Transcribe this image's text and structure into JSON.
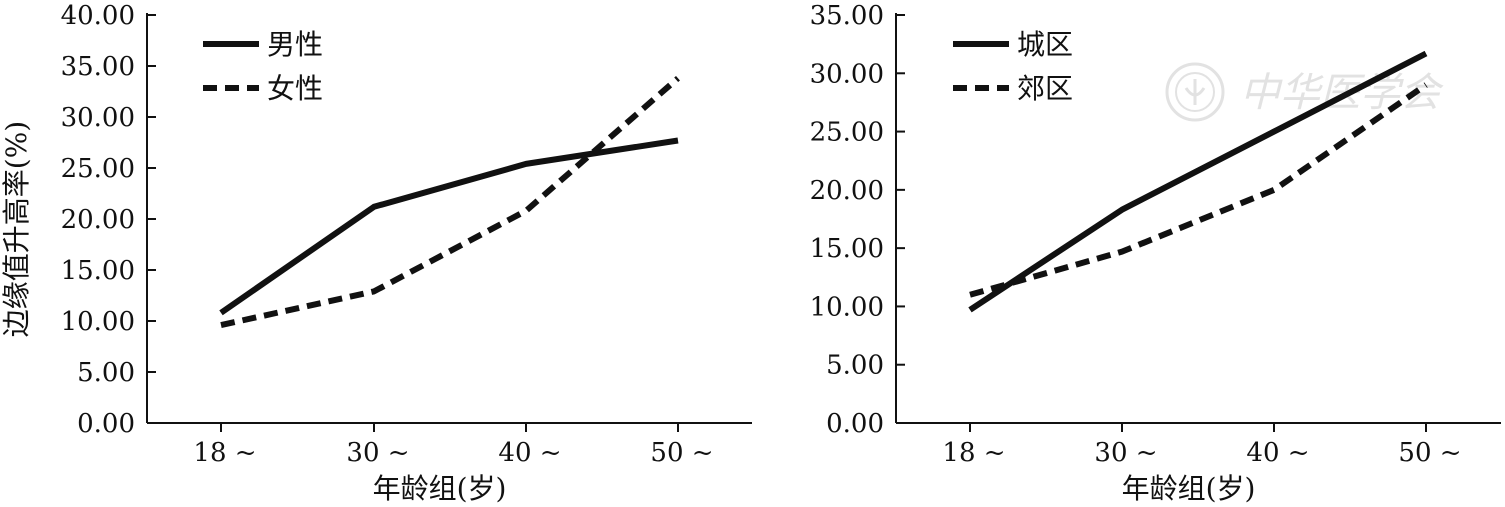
{
  "chart_data": [
    {
      "type": "line",
      "ylabel": "边缘值升高率(%)",
      "xlabel": "年龄组(岁)",
      "categories": [
        "18 ~",
        "30 ~",
        "40 ~",
        "50 ~"
      ],
      "ylim": [
        0,
        40
      ],
      "yticks": [
        "0.00",
        "5.00",
        "10.00",
        "15.00",
        "20.00",
        "25.00",
        "30.00",
        "35.00",
        "40.00"
      ],
      "legend_position": "top-left",
      "series": [
        {
          "name": "男性",
          "style": "solid",
          "values": [
            10.8,
            21.2,
            25.4,
            27.7
          ]
        },
        {
          "name": "女性",
          "style": "dashed",
          "values": [
            9.6,
            12.9,
            20.8,
            33.8
          ]
        }
      ]
    },
    {
      "type": "line",
      "ylabel": "",
      "xlabel": "年龄组(岁)",
      "categories": [
        "18 ~",
        "30 ~",
        "40 ~",
        "50 ~"
      ],
      "ylim": [
        0,
        35
      ],
      "yticks": [
        "0.00",
        "5.00",
        "10.00",
        "15.00",
        "20.00",
        "25.00",
        "30.00",
        "35.00"
      ],
      "legend_position": "top-left",
      "series": [
        {
          "name": "城区",
          "style": "solid",
          "values": [
            9.7,
            18.3,
            25.0,
            31.7
          ]
        },
        {
          "name": "郊区",
          "style": "dashed",
          "values": [
            11.0,
            14.7,
            20.0,
            29.0
          ]
        }
      ]
    }
  ],
  "watermark": {
    "text": "中华医学会",
    "icon": "society-seal-icon"
  },
  "colors": {
    "line": "#111111",
    "watermark": "#e2e2e2"
  }
}
